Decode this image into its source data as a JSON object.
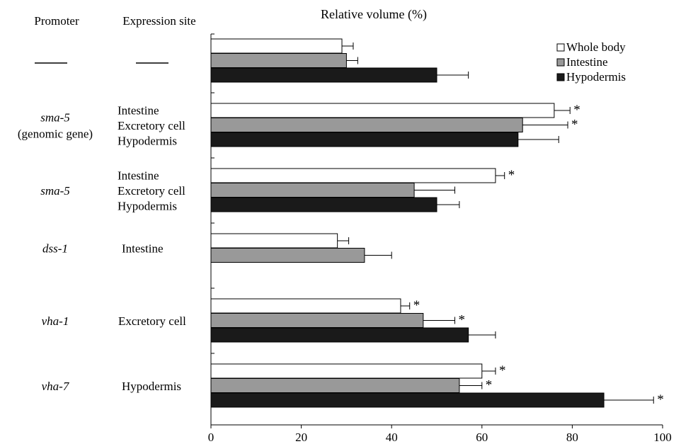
{
  "chart_data": {
    "type": "bar",
    "orientation": "horizontal",
    "title": "Relative volume (%)",
    "column_headers": {
      "promoter": "Promoter",
      "expression_site": "Expression site"
    },
    "xlim": [
      0,
      100
    ],
    "x_ticks": [
      "0",
      "20",
      "40",
      "60",
      "80",
      "100"
    ],
    "grid": false,
    "legend_position": "top-right",
    "significance_marker": "*",
    "series": [
      {
        "name": "Whole body",
        "color": "#ffffff"
      },
      {
        "name": "Intestine",
        "color": "#999999"
      },
      {
        "name": "Hypodermis",
        "color": "#1a1a1a"
      }
    ],
    "groups": [
      {
        "promoter_lines": [
          "——"
        ],
        "promoter_italic": false,
        "site_lines": [
          "——"
        ],
        "bars": [
          {
            "series": 0,
            "value": 29,
            "error": 2.5,
            "sig": false
          },
          {
            "series": 1,
            "value": 30,
            "error": 2.5,
            "sig": false
          },
          {
            "series": 2,
            "value": 50,
            "error": 7,
            "sig": false
          }
        ]
      },
      {
        "promoter_lines": [
          "sma-5",
          "(genomic gene)"
        ],
        "promoter_italic": true,
        "site_lines": [
          "Intestine",
          "Excretory cell",
          "Hypodermis"
        ],
        "bars": [
          {
            "series": 0,
            "value": 76,
            "error": 3.5,
            "sig": true
          },
          {
            "series": 1,
            "value": 69,
            "error": 10,
            "sig": true
          },
          {
            "series": 2,
            "value": 68,
            "error": 9,
            "sig": false
          }
        ]
      },
      {
        "promoter_lines": [
          "sma-5"
        ],
        "promoter_italic": true,
        "site_lines": [
          "Intestine",
          "Excretory cell",
          "Hypodermis"
        ],
        "bars": [
          {
            "series": 0,
            "value": 63,
            "error": 2,
            "sig": true
          },
          {
            "series": 1,
            "value": 45,
            "error": 9,
            "sig": false
          },
          {
            "series": 2,
            "value": 50,
            "error": 5,
            "sig": false
          }
        ]
      },
      {
        "promoter_lines": [
          "dss-1"
        ],
        "promoter_italic": true,
        "site_lines": [
          "Intestine"
        ],
        "bars": [
          {
            "series": 0,
            "value": 28,
            "error": 2.5,
            "sig": false
          },
          {
            "series": 1,
            "value": 34,
            "error": 6,
            "sig": false
          }
        ]
      },
      {
        "promoter_lines": [
          "vha-1"
        ],
        "promoter_italic": true,
        "site_lines": [
          "Excretory cell"
        ],
        "bars": [
          {
            "series": 0,
            "value": 42,
            "error": 2,
            "sig": true
          },
          {
            "series": 1,
            "value": 47,
            "error": 7,
            "sig": true
          },
          {
            "series": 2,
            "value": 57,
            "error": 6,
            "sig": false
          }
        ]
      },
      {
        "promoter_lines": [
          "vha-7"
        ],
        "promoter_italic": true,
        "site_lines": [
          "Hypodermis"
        ],
        "bars": [
          {
            "series": 0,
            "value": 60,
            "error": 3,
            "sig": true
          },
          {
            "series": 1,
            "value": 55,
            "error": 5,
            "sig": true
          },
          {
            "series": 2,
            "value": 87,
            "error": 11,
            "sig": true
          }
        ]
      }
    ]
  }
}
